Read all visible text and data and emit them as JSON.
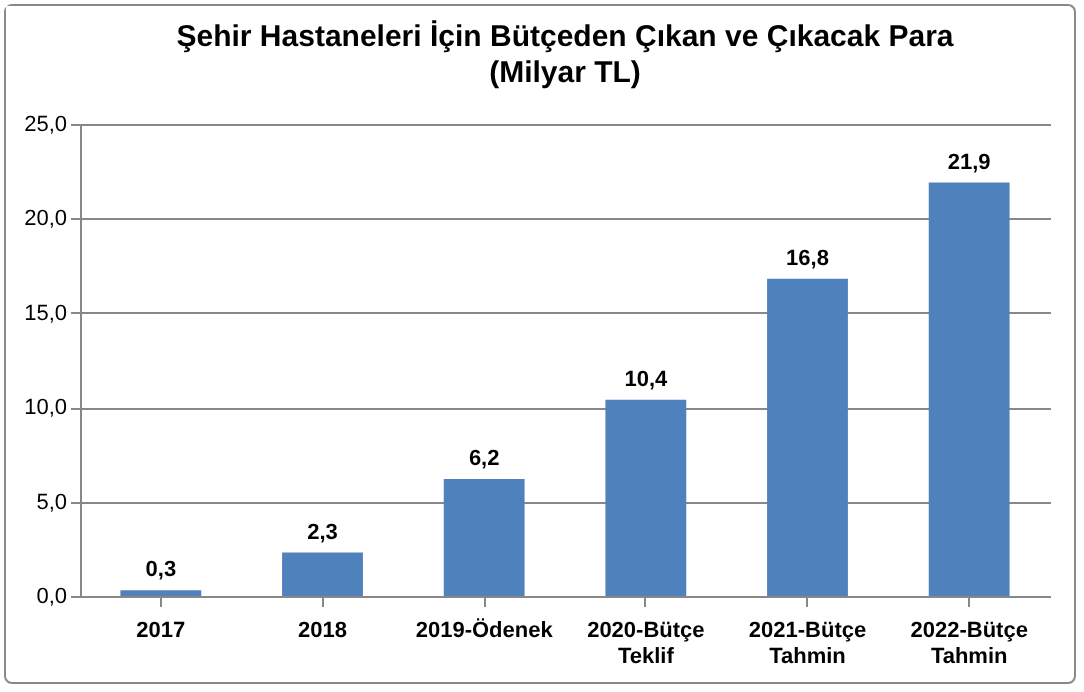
{
  "chart_data": {
    "type": "bar",
    "title": "Şehir Hastaneleri İçin Bütçeden Çıkan ve Çıkacak Para",
    "subtitle": "(Milyar TL)",
    "categories": [
      "2017",
      "2018",
      "2019-Ödenek",
      "2020-Bütçe Teklif",
      "2021-Bütçe Tahmin",
      "2022-Bütçe Tahmin"
    ],
    "values": [
      0.3,
      2.3,
      6.2,
      10.4,
      16.8,
      21.9
    ],
    "value_labels": [
      "0,3",
      "2,3",
      "6,2",
      "10,4",
      "16,8",
      "21,9"
    ],
    "color": "#4f81bd",
    "ylim": [
      0,
      25
    ],
    "yticks": [
      {
        "value": 0,
        "label": "0,0"
      },
      {
        "value": 5,
        "label": "5,0"
      },
      {
        "value": 10,
        "label": "10,0"
      },
      {
        "value": 15,
        "label": "15,0"
      },
      {
        "value": 20,
        "label": "20,0"
      },
      {
        "value": 25,
        "label": "25,0"
      }
    ],
    "grid": "y"
  }
}
